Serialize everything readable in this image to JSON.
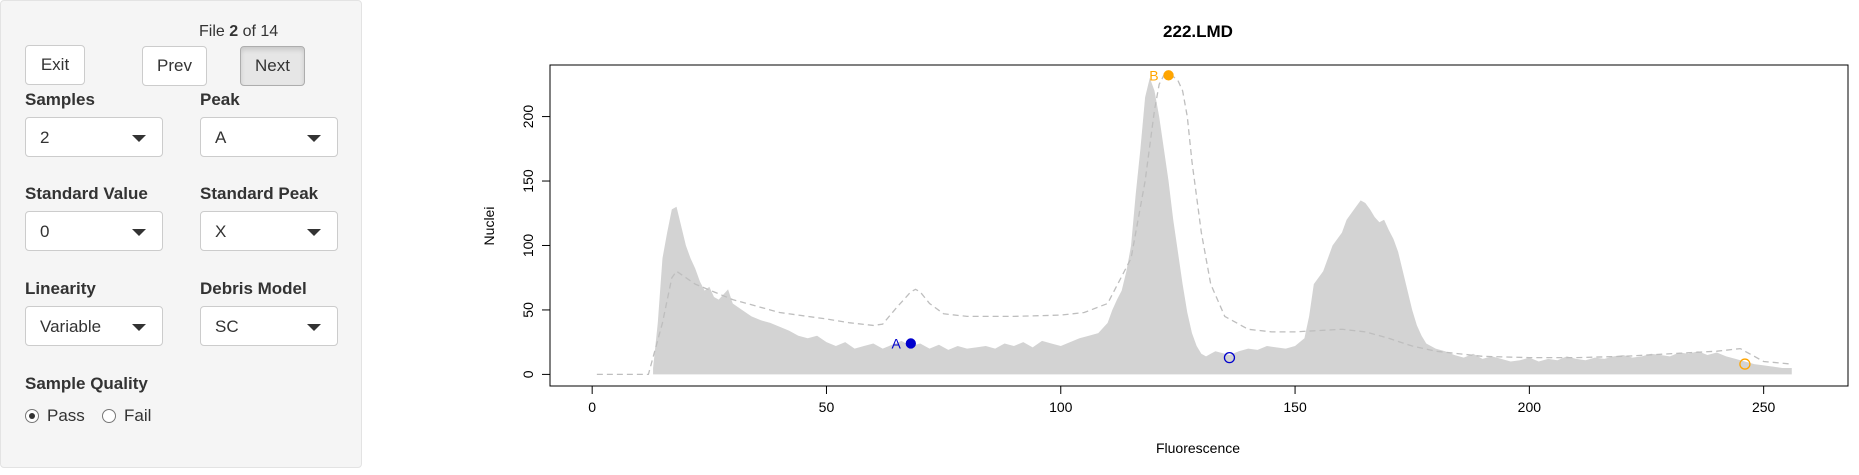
{
  "file_counter": {
    "prefix": "File",
    "current": "2",
    "of": "of",
    "total": "14"
  },
  "buttons": {
    "exit": "Exit",
    "prev": "Prev",
    "next": "Next"
  },
  "controls": {
    "samples": {
      "label": "Samples",
      "value": "2"
    },
    "peak": {
      "label": "Peak",
      "value": "A"
    },
    "standard_value": {
      "label": "Standard Value",
      "value": "0"
    },
    "standard_peak": {
      "label": "Standard Peak",
      "value": "X"
    },
    "linearity": {
      "label": "Linearity",
      "value": "Variable"
    },
    "debris_model": {
      "label": "Debris Model",
      "value": "SC"
    }
  },
  "sample_quality": {
    "label": "Sample Quality",
    "options": [
      {
        "label": "Pass",
        "checked": true
      },
      {
        "label": "Fail",
        "checked": false
      }
    ]
  },
  "colors": {
    "peak_a": "#0000CD",
    "peak_b": "#FFA500",
    "histogram": "#D3D3D3",
    "model_line": "#BEBEBE"
  },
  "chart_data": {
    "type": "area",
    "title": "222.LMD",
    "xlabel": "Fluorescence",
    "ylabel": "Nuclei",
    "xlim": [
      -9,
      268
    ],
    "ylim": [
      -9,
      240
    ],
    "x_ticks": [
      0,
      50,
      100,
      150,
      200,
      250
    ],
    "y_ticks": [
      0,
      50,
      100,
      150,
      200
    ],
    "grid": false,
    "histogram": {
      "x": [
        13,
        14,
        15,
        16,
        17,
        18,
        19,
        20,
        21,
        22,
        23,
        24,
        25,
        26,
        27,
        28,
        29,
        30,
        32,
        34,
        36,
        38,
        40,
        42,
        44,
        46,
        48,
        50,
        52,
        54,
        56,
        58,
        60,
        62,
        64,
        66,
        68,
        70,
        72,
        74,
        76,
        78,
        80,
        82,
        84,
        86,
        88,
        90,
        92,
        94,
        96,
        98,
        100,
        102,
        104,
        106,
        108,
        110,
        111,
        112,
        113,
        114,
        115,
        116,
        117,
        118,
        119,
        120,
        121,
        122,
        123,
        124,
        125,
        126,
        127,
        128,
        129,
        130,
        131,
        132,
        133,
        134,
        136,
        138,
        140,
        142,
        144,
        146,
        148,
        150,
        152,
        153,
        154,
        156,
        158,
        160,
        161,
        162,
        163,
        164,
        165,
        166,
        167,
        168,
        169,
        170,
        171,
        172,
        173,
        174,
        175,
        176,
        177,
        178,
        180,
        182,
        184,
        186,
        188,
        190,
        192,
        194,
        196,
        198,
        200,
        202,
        204,
        206,
        208,
        210,
        212,
        214,
        216,
        218,
        220,
        222,
        224,
        226,
        228,
        230,
        232,
        234,
        236,
        238,
        240,
        242,
        244,
        246,
        248,
        250,
        252,
        254,
        256
      ],
      "y": [
        5,
        40,
        90,
        110,
        128,
        130,
        115,
        100,
        90,
        82,
        72,
        65,
        68,
        60,
        58,
        62,
        66,
        55,
        50,
        45,
        42,
        40,
        37,
        34,
        30,
        28,
        30,
        25,
        22,
        25,
        20,
        22,
        24,
        20,
        23,
        26,
        22,
        24,
        20,
        23,
        19,
        22,
        20,
        21,
        22,
        20,
        24,
        22,
        25,
        21,
        26,
        24,
        22,
        25,
        28,
        30,
        32,
        40,
        50,
        58,
        65,
        80,
        100,
        140,
        175,
        215,
        230,
        220,
        200,
        175,
        150,
        120,
        95,
        70,
        48,
        32,
        22,
        16,
        14,
        16,
        18,
        17,
        15,
        18,
        20,
        19,
        22,
        21,
        20,
        22,
        28,
        45,
        70,
        80,
        100,
        110,
        120,
        125,
        130,
        135,
        133,
        128,
        122,
        118,
        120,
        112,
        105,
        95,
        80,
        65,
        50,
        38,
        30,
        24,
        20,
        18,
        15,
        13,
        16,
        12,
        14,
        12,
        10,
        11,
        13,
        10,
        12,
        11,
        14,
        12,
        11,
        13,
        12,
        14,
        15,
        13,
        14,
        16,
        15,
        14,
        17,
        16,
        18,
        15,
        17,
        14,
        12,
        10,
        8,
        7,
        6,
        5,
        5
      ],
      "color": "#D3D3D3"
    },
    "model_line": {
      "x": [
        1,
        12,
        15,
        17,
        18,
        22,
        30,
        40,
        50,
        55,
        60,
        62,
        65,
        68,
        69,
        70,
        72,
        75,
        80,
        90,
        100,
        105,
        110,
        115,
        118,
        120,
        121,
        122,
        123,
        124,
        125,
        126,
        127,
        128,
        130,
        132,
        135,
        140,
        145,
        150,
        155,
        160,
        165,
        170,
        175,
        180,
        190,
        200,
        210,
        220,
        230,
        240,
        245,
        250,
        256
      ],
      "y": [
        0,
        0,
        40,
        75,
        80,
        70,
        58,
        48,
        43,
        40,
        38,
        39,
        52,
        64,
        66,
        64,
        55,
        47,
        45,
        45,
        46,
        48,
        55,
        90,
        150,
        205,
        225,
        232,
        232,
        231,
        228,
        220,
        200,
        165,
        110,
        70,
        45,
        35,
        33,
        33,
        34,
        35,
        33,
        28,
        22,
        18,
        14,
        13,
        13,
        14,
        16,
        18,
        20,
        10,
        8
      ],
      "color": "#BEBEBE",
      "style": "dashed"
    },
    "peaks": [
      {
        "label": "A",
        "x": 68,
        "y": 24,
        "color": "#0000CD",
        "filled": true
      },
      {
        "label": "B",
        "x": 123,
        "y": 232,
        "color": "#FFA500",
        "filled": true
      },
      {
        "label": "",
        "x": 136,
        "y": 13,
        "color": "#0000CD",
        "filled": false
      },
      {
        "label": "",
        "x": 246,
        "y": 8,
        "color": "#FFA500",
        "filled": false
      }
    ]
  }
}
